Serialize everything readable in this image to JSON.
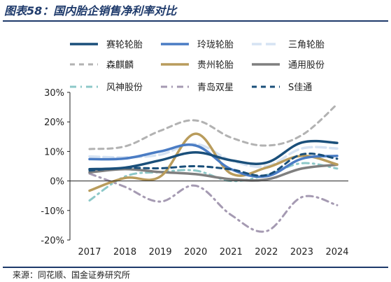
{
  "figure": {
    "title": "图表58：国内胎企销售净利率对比",
    "source": "来源：同花顺、国金证券研究所"
  },
  "chart_data": {
    "type": "line",
    "title": "",
    "xlabel": "",
    "ylabel": "",
    "x": [
      2017,
      2018,
      2019,
      2020,
      2021,
      2022,
      2023,
      2024
    ],
    "x_tick_labels": [
      "2017",
      "2018",
      "2019",
      "2020",
      "2021",
      "2022",
      "2023",
      "2024"
    ],
    "ylim": [
      -0.2,
      0.3
    ],
    "y_ticks": [
      -0.2,
      -0.1,
      0,
      0.1,
      0.2,
      0.3
    ],
    "y_tick_labels": [
      "-20%",
      "-10%",
      "0%",
      "10%",
      "20%",
      "30%"
    ],
    "grid": false,
    "legend_position": "top",
    "series": [
      {
        "name": "赛轮轮胎",
        "color": "#1a4f7a",
        "style": "solid",
        "width": 3.5,
        "values": [
          0.04,
          0.045,
          0.07,
          0.097,
          0.07,
          0.062,
          0.13,
          0.129
        ]
      },
      {
        "name": "玲珑轮胎",
        "color": "#4a7cc4",
        "style": "solid",
        "width": 3.5,
        "values": [
          0.074,
          0.076,
          0.1,
          0.12,
          0.04,
          0.016,
          0.075,
          0.085
        ]
      },
      {
        "name": "三角轮胎",
        "color": "#d6e3f3",
        "style": "longdash",
        "width": 3.5,
        "values": [
          0.083,
          0.08,
          0.089,
          0.125,
          0.07,
          0.05,
          0.11,
          0.11
        ]
      },
      {
        "name": "森麒麟",
        "color": "#b2b2b2",
        "style": "dash",
        "width": 3,
        "values": [
          0.108,
          0.117,
          0.17,
          0.205,
          0.147,
          0.12,
          0.155,
          0.26
        ]
      },
      {
        "name": "贵州轮胎",
        "color": "#b99c5c",
        "style": "solid",
        "width": 3.5,
        "values": [
          -0.033,
          0.01,
          0.015,
          0.16,
          0.025,
          0.045,
          0.085,
          0.056
        ]
      },
      {
        "name": "通用股份",
        "color": "#7f7f7f",
        "style": "solid",
        "width": 3.5,
        "values": [
          0.029,
          0.04,
          0.03,
          0.023,
          0.006,
          0.005,
          0.042,
          0.055
        ]
      },
      {
        "name": "风神股份",
        "color": "#8cc8c8",
        "style": "dashdot",
        "width": 3,
        "values": [
          -0.066,
          0.015,
          0.03,
          0.035,
          0.0,
          0.02,
          0.06,
          0.042
        ]
      },
      {
        "name": "青岛双星",
        "color": "#a59ab2",
        "style": "dashdot",
        "width": 3,
        "values": [
          0.025,
          -0.02,
          -0.07,
          -0.016,
          -0.115,
          -0.17,
          -0.055,
          -0.082
        ]
      },
      {
        "name": "S佳通",
        "color": "#1a4f7a",
        "style": "dash",
        "width": 3,
        "values": [
          0.035,
          0.044,
          0.043,
          0.05,
          0.039,
          0.02,
          0.09,
          0.075
        ]
      }
    ]
  }
}
